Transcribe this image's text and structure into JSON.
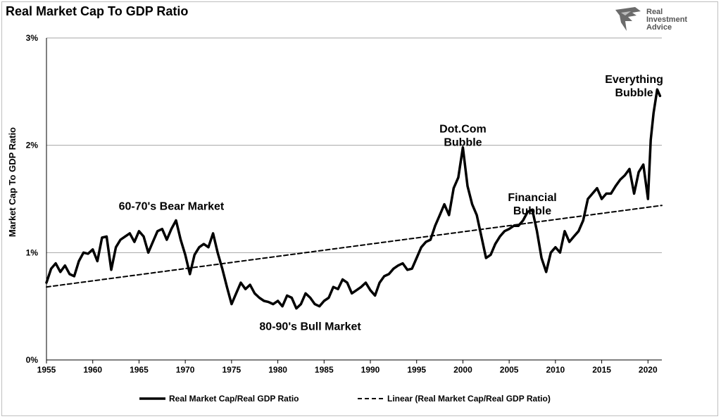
{
  "chart_data": {
    "type": "line",
    "title": "Real Market Cap To GDP Ratio",
    "ylabel": "Market Cap To GDP Ratio",
    "xlabel": "",
    "xlim": [
      1955,
      2021.5
    ],
    "ylim": [
      0,
      3
    ],
    "y_unit": "%",
    "x_ticks": [
      "1955",
      "1960",
      "1965",
      "1970",
      "1975",
      "1980",
      "1985",
      "1990",
      "1995",
      "2000",
      "2005",
      "2010",
      "2015",
      "2020"
    ],
    "y_ticks": [
      "0%",
      "1%",
      "2%",
      "3%"
    ],
    "grid": "horizontal",
    "legend_position": "bottom",
    "series": [
      {
        "name": "Real Market Cap/Real GDP Ratio",
        "style": "solid",
        "color": "#000000",
        "x": [
          1955.0,
          1955.5,
          1956.0,
          1956.5,
          1957.0,
          1957.5,
          1958.0,
          1958.5,
          1959.0,
          1959.5,
          1960.0,
          1960.5,
          1961.0,
          1961.5,
          1962.0,
          1962.5,
          1963.0,
          1963.5,
          1964.0,
          1964.5,
          1965.0,
          1965.5,
          1966.0,
          1966.5,
          1967.0,
          1967.5,
          1968.0,
          1968.5,
          1969.0,
          1969.5,
          1970.0,
          1970.5,
          1971.0,
          1971.5,
          1972.0,
          1972.5,
          1973.0,
          1973.5,
          1974.0,
          1974.5,
          1975.0,
          1975.5,
          1976.0,
          1976.5,
          1977.0,
          1977.5,
          1978.0,
          1978.5,
          1979.0,
          1979.5,
          1980.0,
          1980.5,
          1981.0,
          1981.5,
          1982.0,
          1982.5,
          1983.0,
          1983.5,
          1984.0,
          1984.5,
          1985.0,
          1985.5,
          1986.0,
          1986.5,
          1987.0,
          1987.5,
          1988.0,
          1988.5,
          1989.0,
          1989.5,
          1990.0,
          1990.5,
          1991.0,
          1991.5,
          1992.0,
          1992.5,
          1993.0,
          1993.5,
          1994.0,
          1994.5,
          1995.0,
          1995.5,
          1996.0,
          1996.5,
          1997.0,
          1997.5,
          1998.0,
          1998.5,
          1999.0,
          1999.5,
          2000.0,
          2000.5,
          2001.0,
          2001.5,
          2002.0,
          2002.5,
          2003.0,
          2003.5,
          2004.0,
          2004.5,
          2005.0,
          2005.5,
          2006.0,
          2006.5,
          2007.0,
          2007.5,
          2008.0,
          2008.5,
          2009.0,
          2009.5,
          2010.0,
          2010.5,
          2011.0,
          2011.5,
          2012.0,
          2012.5,
          2013.0,
          2013.5,
          2014.0,
          2014.5,
          2015.0,
          2015.5,
          2016.0,
          2016.5,
          2017.0,
          2017.5,
          2018.0,
          2018.5,
          2019.0,
          2019.5,
          2020.0,
          2020.3,
          2020.6,
          2021.0,
          2021.3
        ],
        "y": [
          0.72,
          0.85,
          0.9,
          0.82,
          0.88,
          0.8,
          0.78,
          0.92,
          1.0,
          0.99,
          1.03,
          0.92,
          1.14,
          1.15,
          0.84,
          1.05,
          1.12,
          1.15,
          1.18,
          1.1,
          1.2,
          1.15,
          1.0,
          1.1,
          1.2,
          1.22,
          1.12,
          1.22,
          1.3,
          1.12,
          0.98,
          0.8,
          0.98,
          1.05,
          1.08,
          1.05,
          1.18,
          1.0,
          0.85,
          0.68,
          0.52,
          0.62,
          0.72,
          0.66,
          0.7,
          0.62,
          0.58,
          0.55,
          0.54,
          0.52,
          0.55,
          0.5,
          0.6,
          0.58,
          0.48,
          0.52,
          0.62,
          0.58,
          0.52,
          0.5,
          0.55,
          0.58,
          0.68,
          0.66,
          0.75,
          0.72,
          0.62,
          0.65,
          0.68,
          0.72,
          0.65,
          0.6,
          0.72,
          0.78,
          0.8,
          0.85,
          0.88,
          0.9,
          0.84,
          0.85,
          0.95,
          1.05,
          1.1,
          1.12,
          1.25,
          1.35,
          1.45,
          1.35,
          1.6,
          1.7,
          1.98,
          1.62,
          1.45,
          1.35,
          1.15,
          0.95,
          0.98,
          1.08,
          1.15,
          1.2,
          1.22,
          1.25,
          1.25,
          1.3,
          1.38,
          1.4,
          1.2,
          0.95,
          0.82,
          1.0,
          1.05,
          1.0,
          1.2,
          1.1,
          1.15,
          1.2,
          1.3,
          1.5,
          1.55,
          1.6,
          1.5,
          1.55,
          1.55,
          1.62,
          1.68,
          1.72,
          1.78,
          1.55,
          1.75,
          1.82,
          1.5,
          2.05,
          2.3,
          2.52,
          2.46
        ]
      },
      {
        "name": "Linear (Real Market Cap/Real GDP Ratio)",
        "style": "dashed",
        "color": "#000000",
        "x": [
          1955,
          2021.5
        ],
        "y": [
          0.68,
          1.44
        ]
      }
    ],
    "annotations": [
      {
        "lines": [
          "60-70's Bear Market"
        ],
        "x": 1968.5,
        "y": 1.4
      },
      {
        "lines": [
          "80-90's Bull Market"
        ],
        "x": 1983.5,
        "y": 0.28
      },
      {
        "lines": [
          "Dot.Com",
          "Bubble"
        ],
        "x": 2000.0,
        "y": 2.12
      },
      {
        "lines": [
          "Financial",
          "Bubble"
        ],
        "x": 2007.5,
        "y": 1.48
      },
      {
        "lines": [
          "Everything",
          "Bubble"
        ],
        "x": 2018.5,
        "y": 2.58
      }
    ]
  },
  "brand": {
    "lines": [
      "Real",
      "Investment",
      "Advice"
    ]
  }
}
